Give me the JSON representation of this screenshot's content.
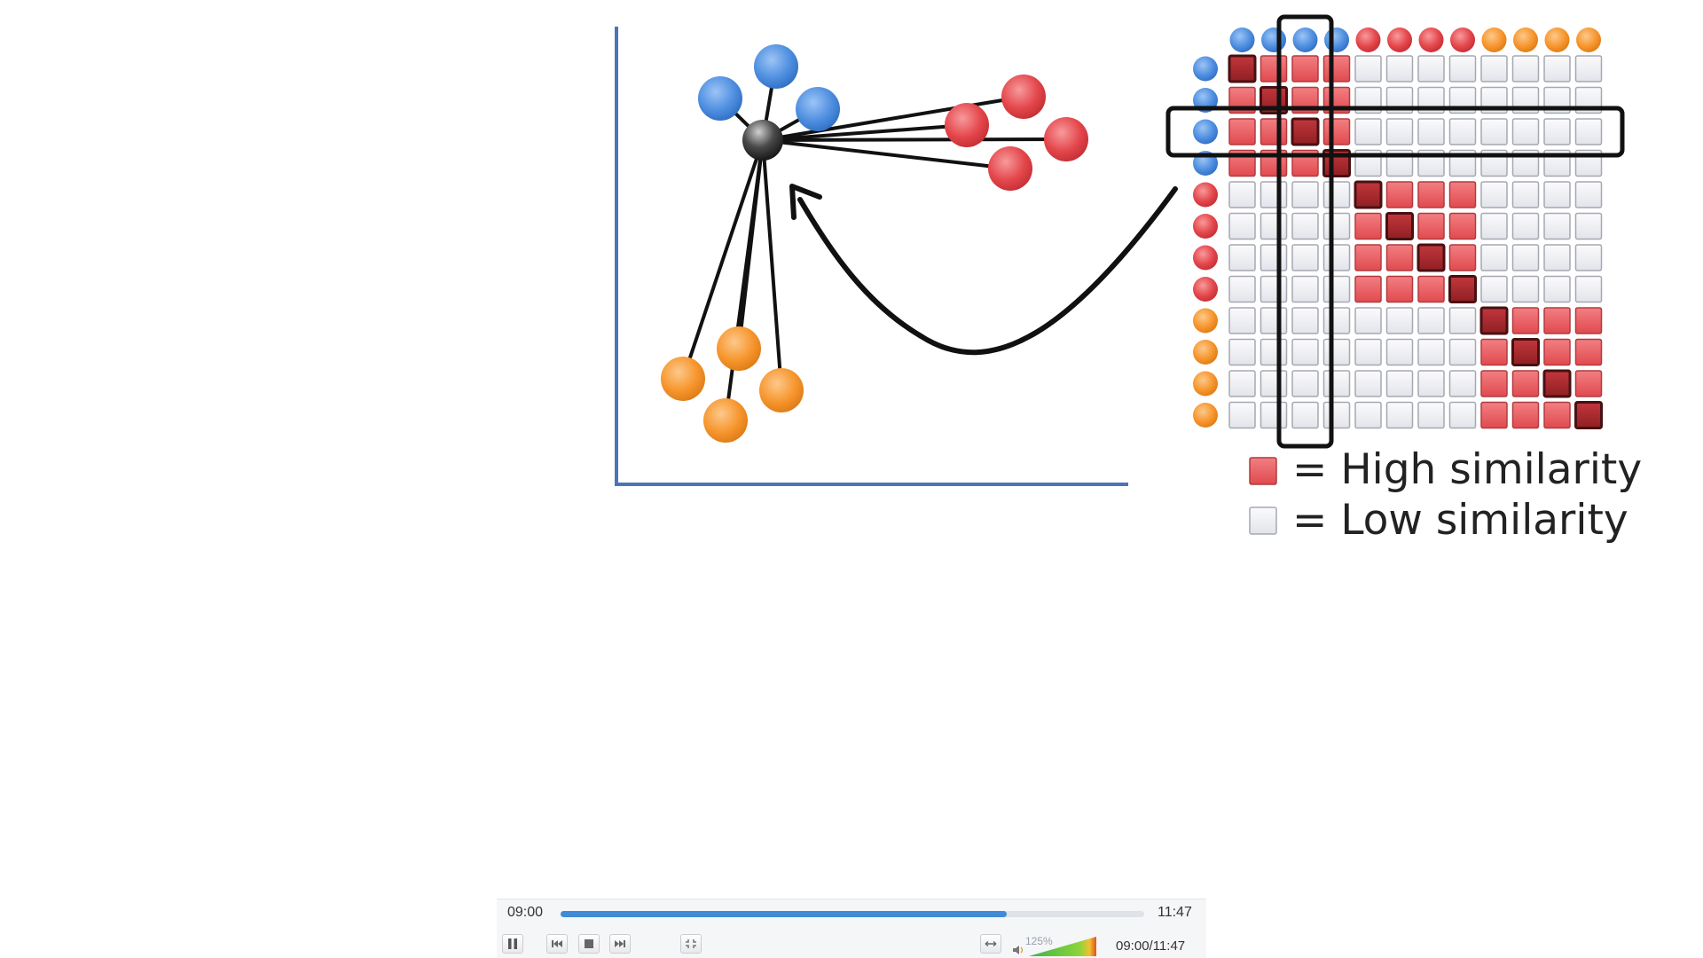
{
  "slide": {
    "legend": {
      "high_label": "= High similarity",
      "low_label": "= Low similarity"
    },
    "matrix": {
      "groups": [
        "blue",
        "blue",
        "blue",
        "blue",
        "red",
        "red",
        "red",
        "red",
        "orange",
        "orange",
        "orange",
        "orange"
      ],
      "highlight_row": 2,
      "highlight_col": 2
    },
    "colors": {
      "axis": "#4a74b8",
      "blue": "#4f8fe0",
      "red": "#e4474c",
      "orange": "#f7962e",
      "cell_high": "#e85a5e",
      "cell_diag": "#b02a2e",
      "cell_low": "#ececf2",
      "center_node": "#3a3a3a"
    }
  },
  "player": {
    "current_time": "09:00",
    "total_time": "11:47",
    "time_display": "09:00/11:47",
    "progress": 0.764,
    "volume_label": "125%",
    "buttons": {
      "pause": "pause-icon",
      "previous": "skip-back-icon",
      "stop": "stop-icon",
      "next": "skip-forward-icon",
      "fullscreen": "fullscreen-exit-icon",
      "aspect": "aspect-ratio-icon",
      "volume": "speaker-icon"
    }
  }
}
